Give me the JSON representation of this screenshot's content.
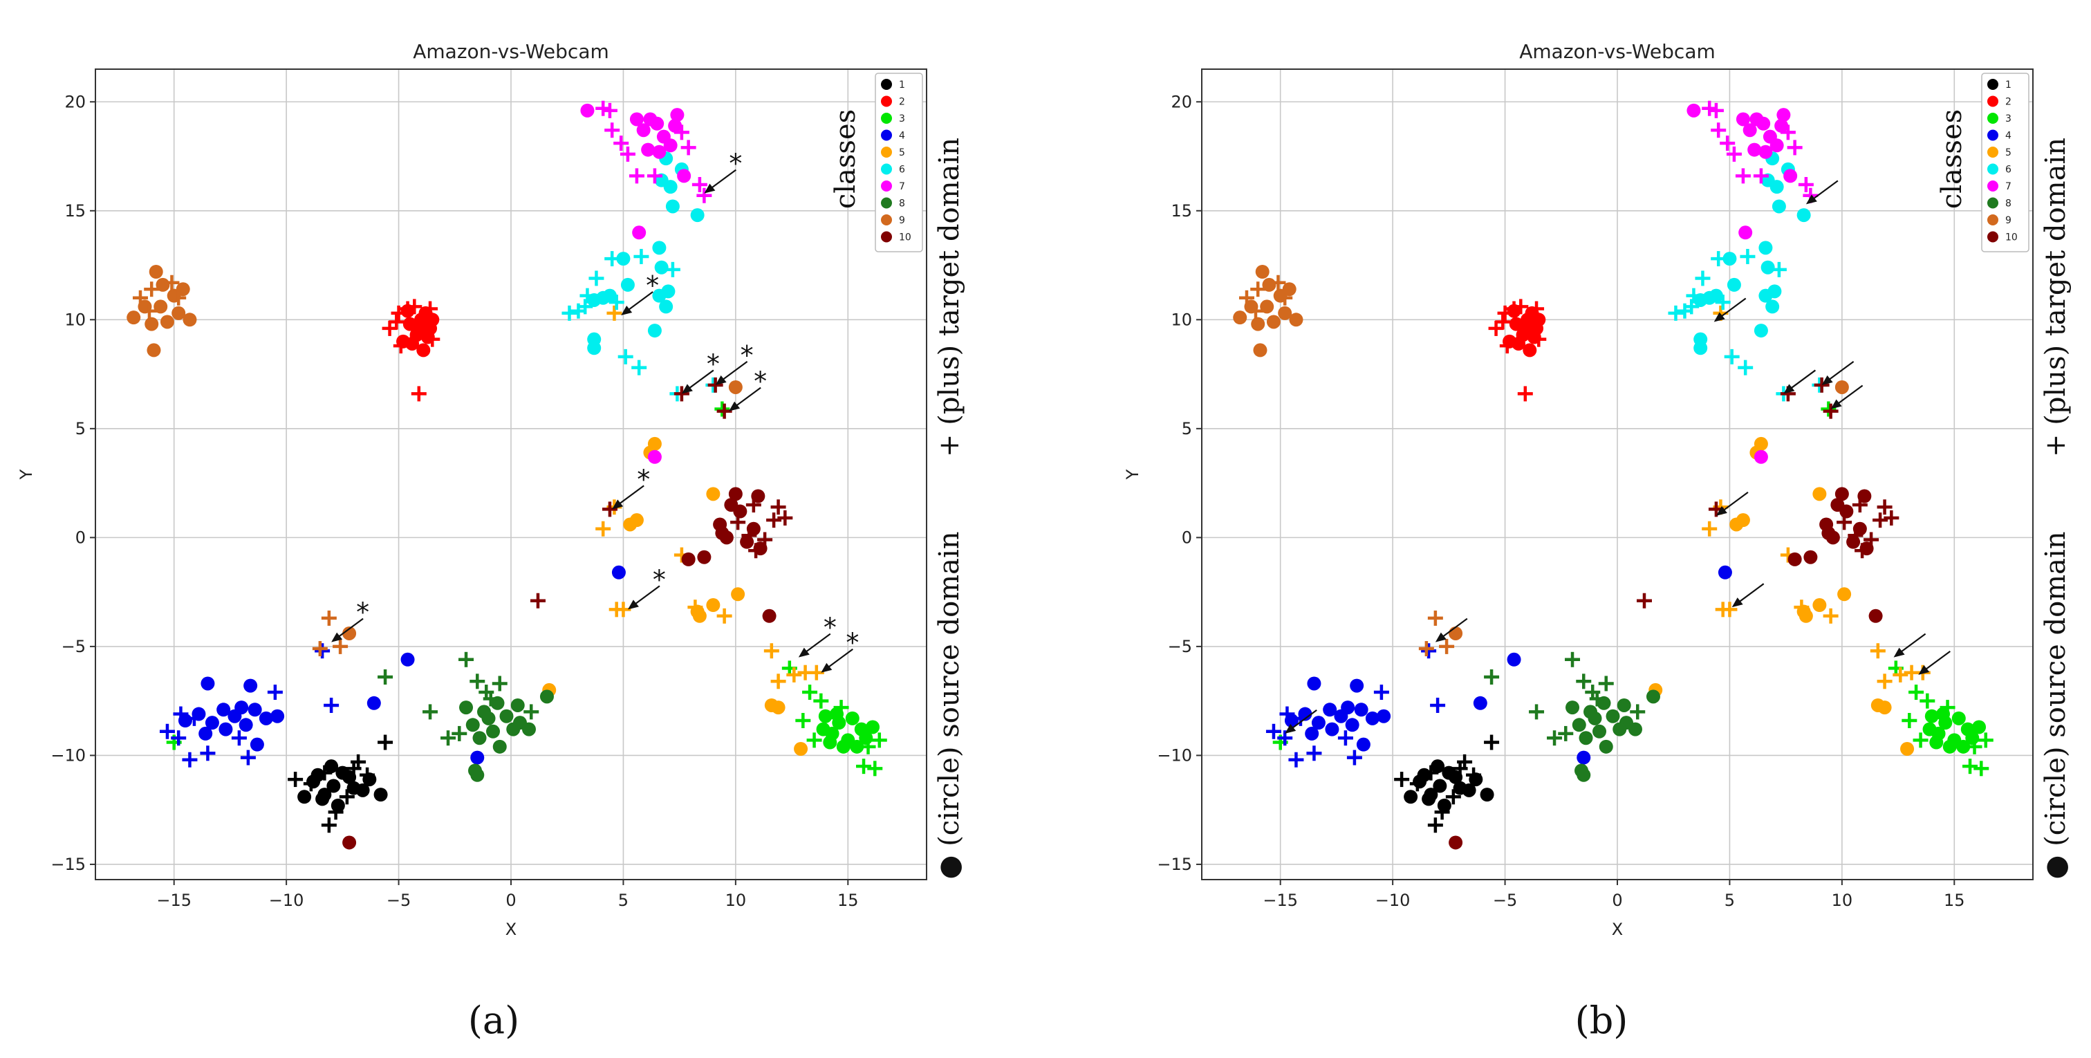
{
  "chart_data": [
    {
      "type": "scatter",
      "panel_label": "a",
      "title": "Amazon-vs-Webcam",
      "xlabel": "X",
      "ylabel": "Y",
      "xlim": [
        -18.5,
        18.5
      ],
      "ylim": [
        -15.7,
        21.5
      ],
      "xticks": [
        -15,
        -10,
        -5,
        0,
        5,
        10,
        15
      ],
      "yticks": [
        -15,
        -10,
        -5,
        0,
        5,
        10,
        15,
        20
      ],
      "grid": true,
      "legend": {
        "placement": "top-right",
        "entries": [
          "1",
          "2",
          "3",
          "4",
          "5",
          "6",
          "7",
          "8",
          "9",
          "10"
        ]
      },
      "side_labels": {
        "legend_caption": "classes",
        "plus_caption": "+ (plus) target domain",
        "circle_caption": "● (circle) source domain"
      },
      "star_marker": "*",
      "annotations": [
        {
          "x": 8.6,
          "y": 15.8
        },
        {
          "x": 4.9,
          "y": 10.2
        },
        {
          "x": 7.6,
          "y": 6.6
        },
        {
          "x": 9.1,
          "y": 7.0
        },
        {
          "x": 9.7,
          "y": 5.8
        },
        {
          "x": 4.5,
          "y": 1.3
        },
        {
          "x": 5.2,
          "y": -3.3
        },
        {
          "x": -8.0,
          "y": -4.8
        },
        {
          "x": 12.8,
          "y": -5.5
        },
        {
          "x": 13.8,
          "y": -6.2
        }
      ]
    },
    {
      "type": "scatter",
      "panel_label": "b",
      "title": "Amazon-vs-Webcam",
      "xlabel": "X",
      "ylabel": "Y",
      "xlim": [
        -18.5,
        18.5
      ],
      "ylim": [
        -15.7,
        21.5
      ],
      "xticks": [
        -15,
        -10,
        -5,
        0,
        5,
        10,
        15
      ],
      "yticks": [
        -15,
        -10,
        -5,
        0,
        5,
        10,
        15,
        20
      ],
      "grid": true,
      "legend": {
        "placement": "top-right",
        "entries": [
          "1",
          "2",
          "3",
          "4",
          "5",
          "6",
          "7",
          "8",
          "9",
          "10"
        ]
      },
      "side_labels": {
        "legend_caption": "classes",
        "plus_caption": "+ (plus) target domain",
        "circle_caption": "● (circle) source domain"
      },
      "annotations": [
        {
          "x": 8.4,
          "y": 15.3
        },
        {
          "x": 4.3,
          "y": 9.9
        },
        {
          "x": 7.4,
          "y": 6.6
        },
        {
          "x": 9.1,
          "y": 7.0
        },
        {
          "x": 9.5,
          "y": 5.9
        },
        {
          "x": 4.4,
          "y": 1.0
        },
        {
          "x": 5.1,
          "y": -3.2
        },
        {
          "x": -8.1,
          "y": -4.8
        },
        {
          "x": 12.3,
          "y": -5.5
        },
        {
          "x": 13.4,
          "y": -6.3
        },
        {
          "x": -14.8,
          "y": -9.0
        }
      ]
    }
  ],
  "classes": [
    {
      "label": "1",
      "color": "#000000",
      "source": [
        [
          -8.0,
          -10.5
        ],
        [
          -7.5,
          -10.8
        ],
        [
          -8.8,
          -11.2
        ],
        [
          -7.2,
          -11.0
        ],
        [
          -8.3,
          -11.8
        ],
        [
          -7.0,
          -11.5
        ],
        [
          -9.2,
          -11.9
        ],
        [
          -6.3,
          -11.1
        ],
        [
          -7.7,
          -12.3
        ],
        [
          -8.6,
          -10.9
        ],
        [
          -6.6,
          -11.6
        ],
        [
          -5.8,
          -11.8
        ],
        [
          -7.9,
          -11.4
        ],
        [
          -8.4,
          -12.0
        ]
      ],
      "target": [
        [
          -9.6,
          -11.1
        ],
        [
          -8.3,
          -10.8
        ],
        [
          -6.8,
          -10.3
        ],
        [
          -6.4,
          -10.9
        ],
        [
          -7.3,
          -11.9
        ],
        [
          -7.8,
          -12.6
        ],
        [
          -8.1,
          -13.2
        ],
        [
          -5.6,
          -9.4
        ],
        [
          -8.9,
          -11.3
        ],
        [
          -7.0,
          -10.6
        ]
      ]
    },
    {
      "label": "2",
      "color": "#ff0000",
      "source": [
        [
          -4.5,
          9.8
        ],
        [
          -4.0,
          10.0
        ],
        [
          -3.6,
          9.6
        ],
        [
          -4.2,
          9.3
        ],
        [
          -3.8,
          10.3
        ],
        [
          -4.6,
          10.4
        ],
        [
          -3.5,
          10.0
        ],
        [
          -4.4,
          8.9
        ],
        [
          -3.9,
          8.6
        ],
        [
          -4.8,
          9.0
        ],
        [
          -4.1,
          9.5
        ],
        [
          -3.7,
          9.2
        ]
      ],
      "target": [
        [
          -5.4,
          9.6
        ],
        [
          -5.0,
          10.3
        ],
        [
          -4.6,
          10.5
        ],
        [
          -4.3,
          10.6
        ],
        [
          -3.6,
          10.5
        ],
        [
          -3.5,
          9.1
        ],
        [
          -4.9,
          8.8
        ],
        [
          -4.1,
          6.6
        ],
        [
          -5.1,
          9.9
        ],
        [
          -3.9,
          9.8
        ]
      ]
    },
    {
      "label": "3",
      "color": "#00e600",
      "source": [
        [
          14.0,
          -8.2
        ],
        [
          14.6,
          -8.5
        ],
        [
          15.2,
          -8.3
        ],
        [
          15.6,
          -8.8
        ],
        [
          14.3,
          -9.0
        ],
        [
          15.0,
          -9.3
        ],
        [
          15.8,
          -9.2
        ],
        [
          14.8,
          -9.6
        ],
        [
          14.2,
          -9.4
        ],
        [
          16.1,
          -8.7
        ],
        [
          15.4,
          -9.6
        ],
        [
          13.9,
          -8.8
        ],
        [
          14.5,
          -8.1
        ]
      ],
      "target": [
        [
          12.4,
          -6.0
        ],
        [
          13.3,
          -7.1
        ],
        [
          13.8,
          -7.5
        ],
        [
          13.0,
          -8.4
        ],
        [
          14.7,
          -7.8
        ],
        [
          15.9,
          -9.6
        ],
        [
          16.4,
          -9.3
        ],
        [
          15.7,
          -10.5
        ],
        [
          16.2,
          -10.6
        ],
        [
          13.5,
          -9.3
        ],
        [
          -15.0,
          -9.4
        ],
        [
          9.4,
          5.9
        ]
      ]
    },
    {
      "label": "4",
      "color": "#0000ee",
      "source": [
        [
          -13.5,
          -6.7
        ],
        [
          -12.8,
          -7.9
        ],
        [
          -12.3,
          -8.2
        ],
        [
          -11.8,
          -8.6
        ],
        [
          -11.4,
          -7.9
        ],
        [
          -10.9,
          -8.3
        ],
        [
          -10.4,
          -8.2
        ],
        [
          -13.9,
          -8.1
        ],
        [
          -13.3,
          -8.5
        ],
        [
          -12.7,
          -8.8
        ],
        [
          -12.0,
          -7.8
        ],
        [
          -13.6,
          -9.0
        ],
        [
          -11.3,
          -9.5
        ],
        [
          -4.6,
          -5.6
        ],
        [
          -6.1,
          -7.6
        ],
        [
          -1.5,
          -10.1
        ],
        [
          4.8,
          -1.6
        ],
        [
          -14.5,
          -8.4
        ],
        [
          -11.6,
          -6.8
        ]
      ],
      "target": [
        [
          -15.3,
          -8.9
        ],
        [
          -14.8,
          -9.2
        ],
        [
          -14.3,
          -10.2
        ],
        [
          -13.5,
          -9.9
        ],
        [
          -12.1,
          -9.2
        ],
        [
          -11.7,
          -10.1
        ],
        [
          -10.5,
          -7.1
        ],
        [
          -14.7,
          -8.1
        ],
        [
          -8.4,
          -5.2
        ],
        [
          -8.0,
          -7.7
        ],
        [
          -14.1,
          -8.3
        ]
      ]
    },
    {
      "label": "5",
      "color": "#ffa500",
      "source": [
        [
          6.4,
          4.3
        ],
        [
          6.2,
          3.9
        ],
        [
          5.6,
          0.8
        ],
        [
          5.3,
          0.6
        ],
        [
          8.3,
          -3.4
        ],
        [
          8.4,
          -3.6
        ],
        [
          9.0,
          -3.1
        ],
        [
          10.1,
          -2.6
        ],
        [
          11.6,
          -7.7
        ],
        [
          11.9,
          -7.8
        ],
        [
          12.9,
          -9.7
        ],
        [
          9.0,
          2.0
        ],
        [
          1.7,
          -7.0
        ]
      ],
      "target": [
        [
          4.1,
          0.4
        ],
        [
          4.6,
          1.4
        ],
        [
          5.0,
          -3.3
        ],
        [
          4.7,
          -3.3
        ],
        [
          8.2,
          -3.2
        ],
        [
          9.5,
          -3.6
        ],
        [
          11.6,
          -5.2
        ],
        [
          12.6,
          -6.3
        ],
        [
          13.1,
          -6.2
        ],
        [
          13.6,
          -6.2
        ],
        [
          11.9,
          -6.6
        ],
        [
          4.6,
          10.3
        ],
        [
          7.6,
          -0.8
        ]
      ]
    },
    {
      "label": "6",
      "color": "#00eeee",
      "source": [
        [
          6.7,
          16.4
        ],
        [
          6.9,
          17.4
        ],
        [
          7.1,
          16.1
        ],
        [
          7.2,
          15.2
        ],
        [
          8.3,
          14.8
        ],
        [
          6.6,
          13.3
        ],
        [
          6.7,
          12.4
        ],
        [
          7.0,
          11.3
        ],
        [
          6.6,
          11.1
        ],
        [
          6.9,
          10.6
        ],
        [
          6.4,
          9.5
        ],
        [
          5.0,
          12.8
        ],
        [
          5.2,
          11.6
        ],
        [
          4.4,
          11.1
        ],
        [
          3.7,
          10.9
        ],
        [
          3.7,
          8.7
        ],
        [
          3.7,
          9.1
        ],
        [
          4.1,
          11.0
        ],
        [
          7.6,
          16.9
        ]
      ],
      "target": [
        [
          2.6,
          10.3
        ],
        [
          3.0,
          10.4
        ],
        [
          3.3,
          10.6
        ],
        [
          3.4,
          11.1
        ],
        [
          3.8,
          11.9
        ],
        [
          4.5,
          12.8
        ],
        [
          5.8,
          12.9
        ],
        [
          4.7,
          10.8
        ],
        [
          5.1,
          8.3
        ],
        [
          5.7,
          7.8
        ],
        [
          7.2,
          12.3
        ],
        [
          9.0,
          7.0
        ],
        [
          7.4,
          6.6
        ]
      ]
    },
    {
      "label": "7",
      "color": "#ff00ff",
      "source": [
        [
          3.4,
          19.6
        ],
        [
          5.6,
          19.2
        ],
        [
          6.2,
          19.2
        ],
        [
          6.5,
          19.0
        ],
        [
          7.4,
          19.4
        ],
        [
          5.9,
          18.7
        ],
        [
          6.8,
          18.4
        ],
        [
          7.1,
          18.0
        ],
        [
          6.1,
          17.8
        ],
        [
          6.6,
          17.7
        ],
        [
          7.3,
          18.9
        ],
        [
          7.7,
          16.6
        ],
        [
          5.7,
          14.0
        ],
        [
          6.4,
          3.7
        ]
      ],
      "target": [
        [
          4.1,
          19.7
        ],
        [
          4.4,
          19.6
        ],
        [
          4.5,
          18.7
        ],
        [
          4.9,
          18.1
        ],
        [
          5.2,
          17.6
        ],
        [
          5.6,
          16.6
        ],
        [
          6.4,
          16.6
        ],
        [
          7.9,
          17.9
        ],
        [
          8.4,
          16.2
        ],
        [
          8.6,
          15.7
        ],
        [
          7.6,
          18.6
        ]
      ]
    },
    {
      "label": "8",
      "color": "#1f7a1f",
      "source": [
        [
          -2.0,
          -7.8
        ],
        [
          -1.2,
          -8.0
        ],
        [
          -0.6,
          -7.6
        ],
        [
          -0.2,
          -8.2
        ],
        [
          0.4,
          -8.5
        ],
        [
          -1.7,
          -8.6
        ],
        [
          -0.8,
          -8.9
        ],
        [
          0.1,
          -8.8
        ],
        [
          0.8,
          -8.8
        ],
        [
          -1.4,
          -9.2
        ],
        [
          -0.5,
          -9.6
        ],
        [
          -1.6,
          -10.7
        ],
        [
          -1.5,
          -10.9
        ],
        [
          1.6,
          -7.3
        ],
        [
          -1.0,
          -8.3
        ],
        [
          0.3,
          -7.7
        ]
      ],
      "target": [
        [
          -2.0,
          -5.6
        ],
        [
          -1.5,
          -6.6
        ],
        [
          -1.1,
          -7.1
        ],
        [
          -0.5,
          -6.7
        ],
        [
          -2.3,
          -9.0
        ],
        [
          -2.8,
          -9.2
        ],
        [
          -3.6,
          -8.0
        ],
        [
          -5.6,
          -6.4
        ],
        [
          -0.9,
          -7.4
        ],
        [
          0.9,
          -8.0
        ]
      ]
    },
    {
      "label": "9",
      "color": "#d2691e",
      "source": [
        [
          -16.8,
          10.1
        ],
        [
          -16.3,
          10.6
        ],
        [
          -15.8,
          12.2
        ],
        [
          -15.5,
          11.6
        ],
        [
          -15.0,
          11.1
        ],
        [
          -14.6,
          11.4
        ],
        [
          -15.3,
          9.9
        ],
        [
          -14.8,
          10.3
        ],
        [
          -16.0,
          9.8
        ],
        [
          -14.3,
          10.0
        ],
        [
          -15.9,
          8.6
        ],
        [
          -15.6,
          10.6
        ],
        [
          -7.2,
          -4.4
        ],
        [
          10.0,
          6.9
        ]
      ],
      "target": [
        [
          -16.5,
          11.0
        ],
        [
          -16.0,
          11.4
        ],
        [
          -15.1,
          11.7
        ],
        [
          -14.8,
          11.0
        ],
        [
          -16.1,
          10.4
        ],
        [
          -8.1,
          -3.7
        ],
        [
          -8.5,
          -5.1
        ],
        [
          -7.6,
          -5.0
        ]
      ]
    },
    {
      "label": "10",
      "color": "#800000",
      "source": [
        [
          9.3,
          0.6
        ],
        [
          9.8,
          1.5
        ],
        [
          10.2,
          1.2
        ],
        [
          10.8,
          0.4
        ],
        [
          9.6,
          0.0
        ],
        [
          10.5,
          -0.2
        ],
        [
          11.0,
          1.9
        ],
        [
          10.0,
          2.0
        ],
        [
          11.1,
          -0.5
        ],
        [
          11.5,
          -3.6
        ],
        [
          8.6,
          -0.9
        ],
        [
          7.9,
          -1.0
        ],
        [
          -7.2,
          -14.0
        ],
        [
          9.4,
          0.2
        ]
      ],
      "target": [
        [
          11.7,
          0.8
        ],
        [
          12.2,
          0.9
        ],
        [
          10.8,
          1.5
        ],
        [
          11.9,
          1.4
        ],
        [
          10.6,
          0.1
        ],
        [
          11.3,
          -0.1
        ],
        [
          10.1,
          0.7
        ],
        [
          10.9,
          -0.6
        ],
        [
          7.6,
          6.6
        ],
        [
          9.5,
          5.8
        ],
        [
          9.1,
          7.0
        ],
        [
          4.4,
          1.3
        ],
        [
          1.2,
          -2.9
        ]
      ]
    }
  ],
  "captions": {
    "panel_a": "(a)",
    "panel_b": "(b)"
  }
}
